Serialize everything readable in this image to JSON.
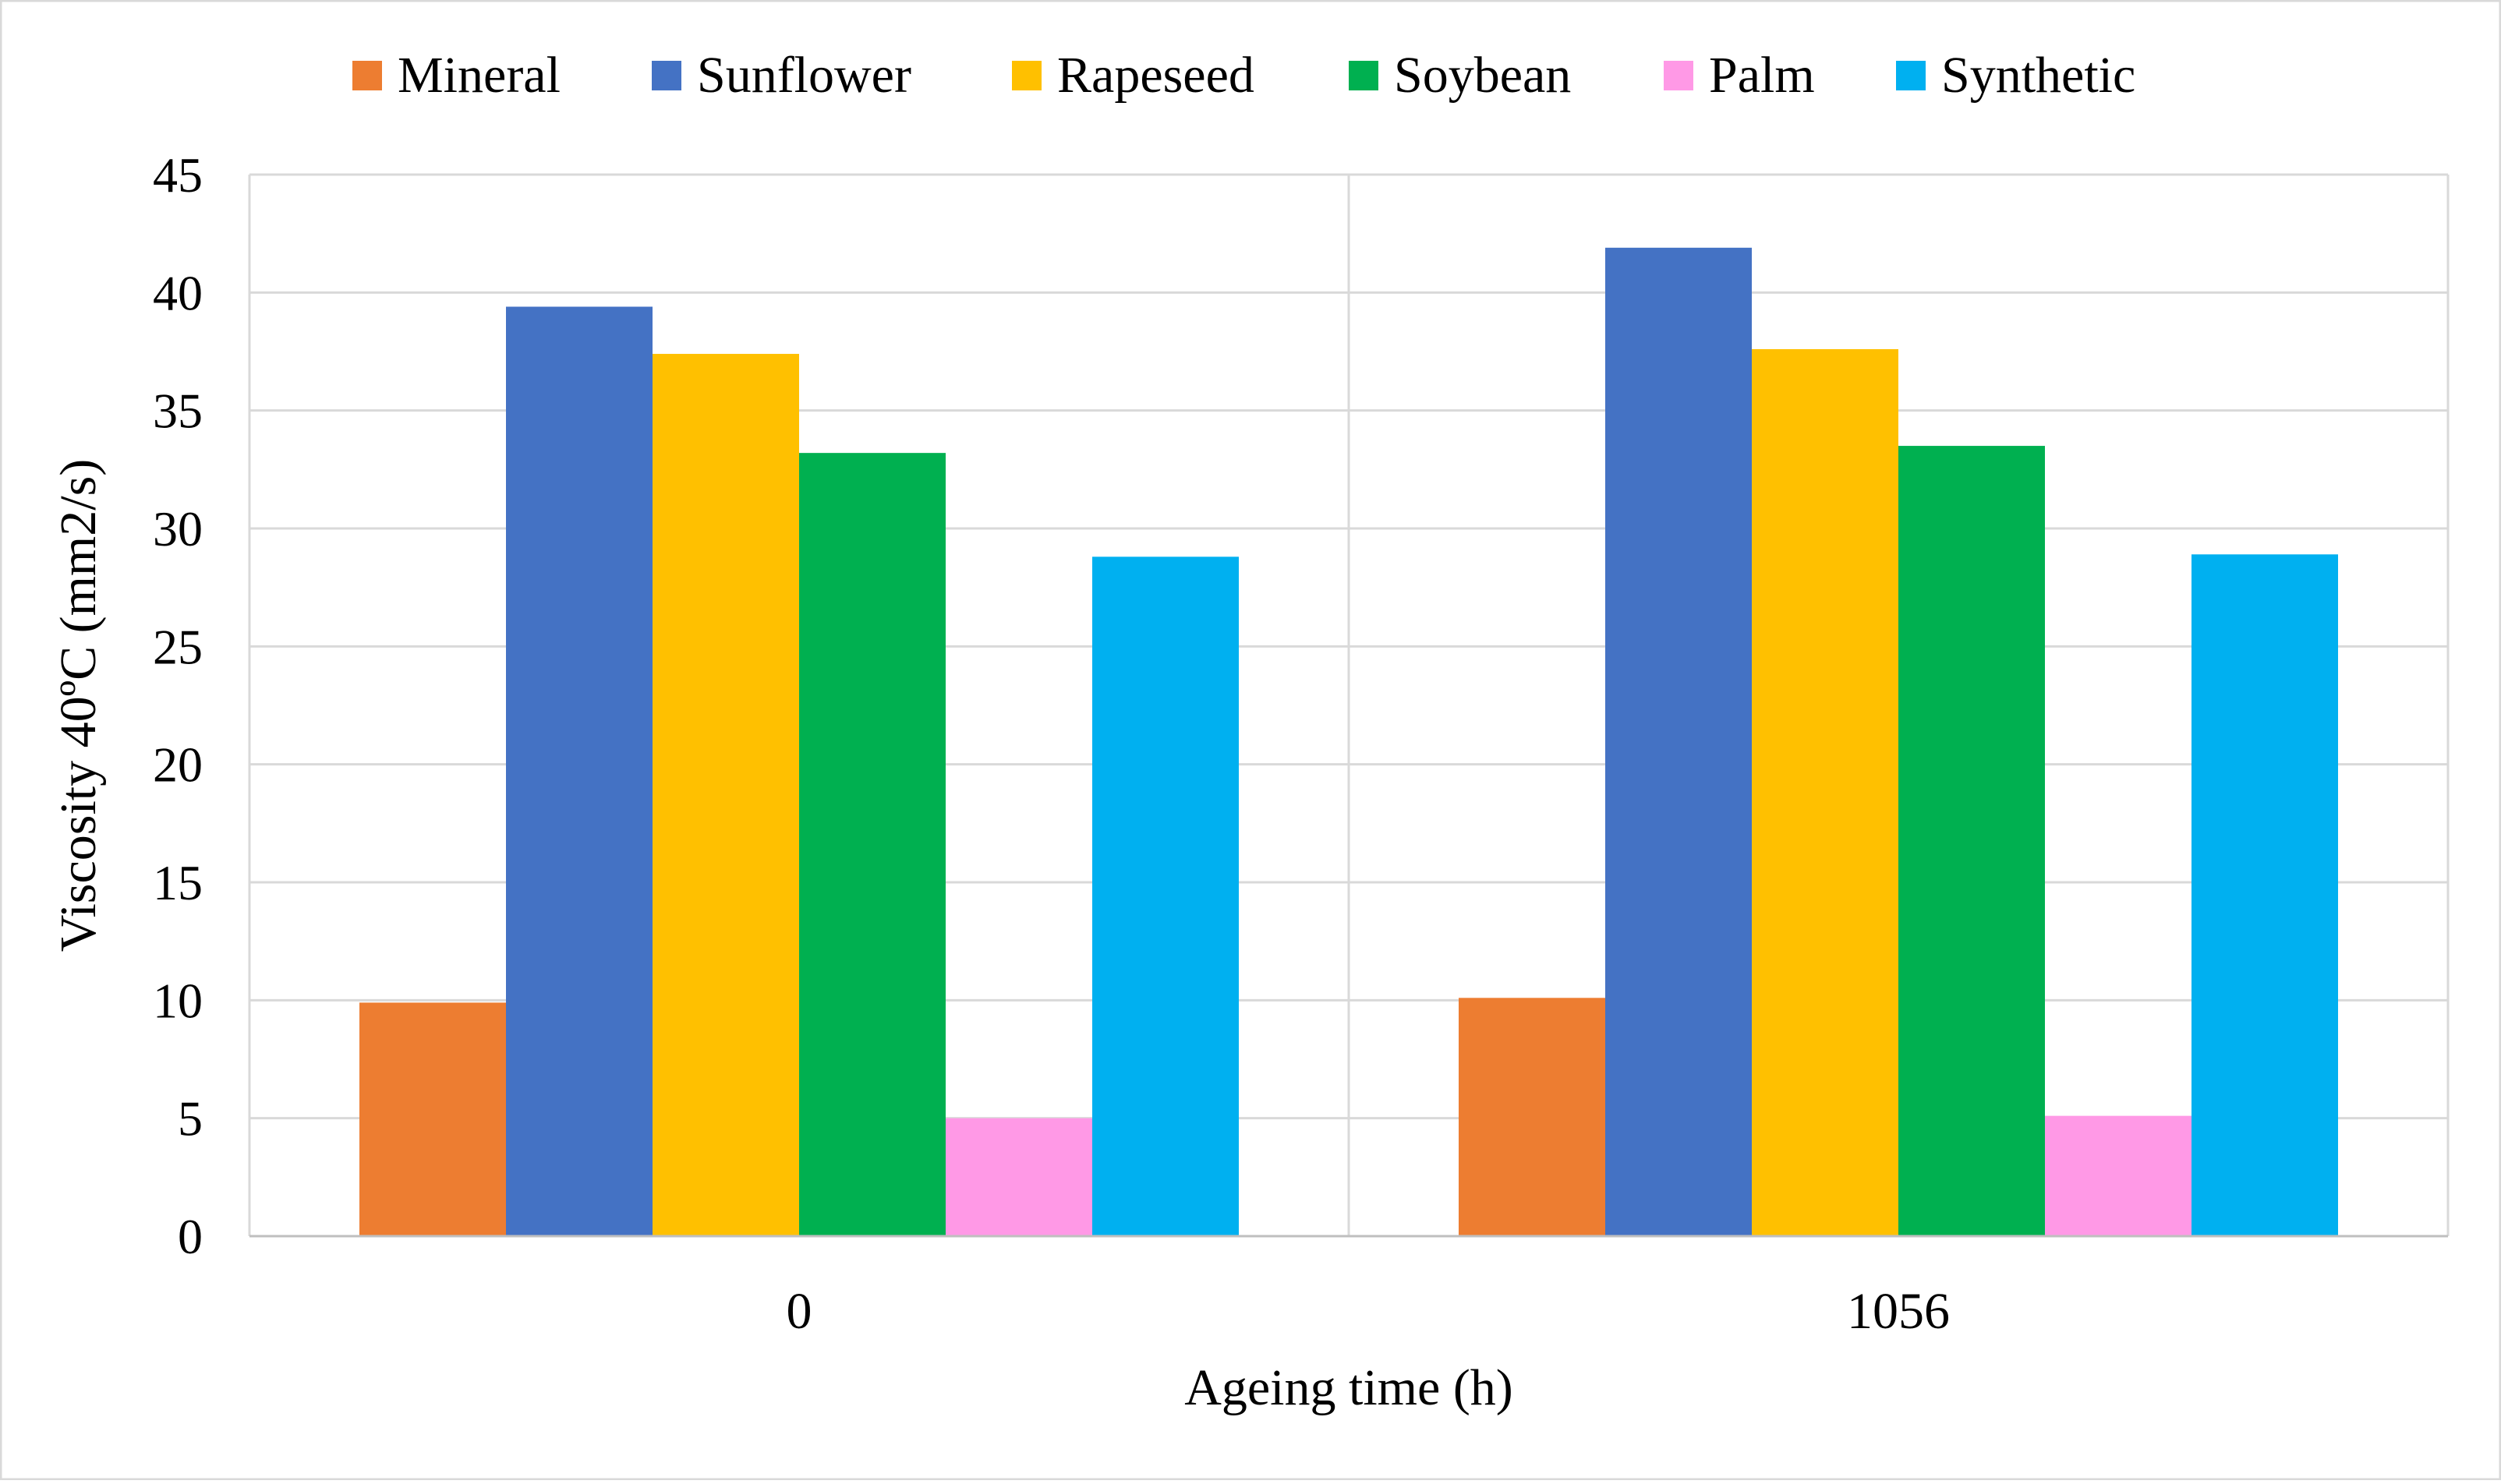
{
  "chart_data": {
    "type": "bar",
    "title": "",
    "xlabel": "Ageing time (h)",
    "ylabel": "Viscosity 40ºC (mm2/s)",
    "categories": [
      "0",
      "1056"
    ],
    "ylim": [
      0,
      45
    ],
    "yticks": [
      0,
      5,
      10,
      15,
      20,
      25,
      30,
      35,
      40,
      45
    ],
    "grid": true,
    "legend_position": "top",
    "series": [
      {
        "name": "Mineral",
        "color": "#ED7D31",
        "values": [
          9.9,
          10.1
        ]
      },
      {
        "name": "Sunflower",
        "color": "#4472C4",
        "values": [
          39.4,
          41.9
        ]
      },
      {
        "name": "Rapeseed",
        "color": "#FFC000",
        "values": [
          37.4,
          37.6
        ]
      },
      {
        "name": "Soybean",
        "color": "#00B050",
        "values": [
          33.2,
          33.5
        ]
      },
      {
        "name": "Palm",
        "color": "#FF99E6",
        "values": [
          5.0,
          5.1
        ]
      },
      {
        "name": "Synthetic",
        "color": "#00B0F0",
        "values": [
          28.8,
          28.9
        ]
      }
    ]
  }
}
